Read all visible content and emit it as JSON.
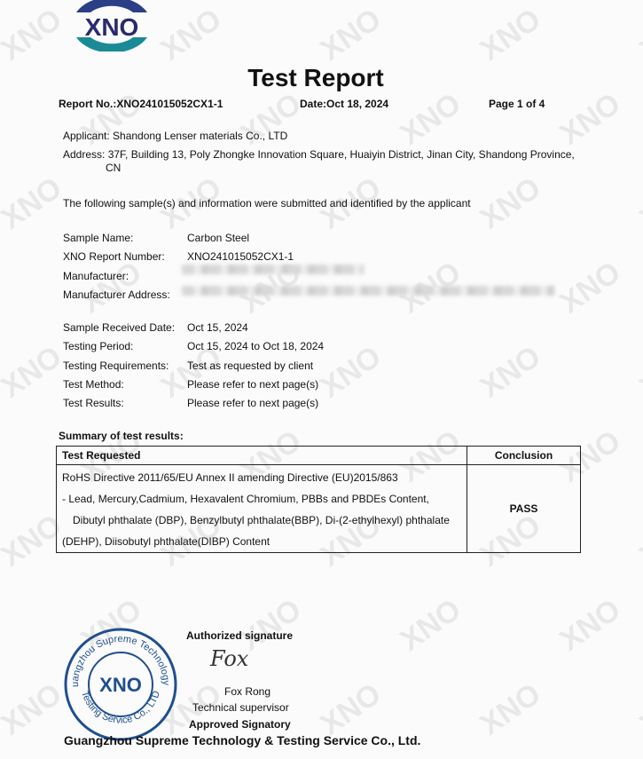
{
  "logo": {
    "text": "XNO",
    "colors": {
      "arc": "#1a7f8f",
      "letters": "#2a2a6e"
    }
  },
  "watermark": "XNO",
  "title": "Test Report",
  "header": {
    "report_no": "Report No.:XNO241015052CX1-1",
    "date": "Date:Oct 18, 2024",
    "page": "Page 1 of 4"
  },
  "applicant": "Applicant: Shandong Lenser materials Co., LTD",
  "address_line1": "Address: 37F, Building 13, Poly Zhongke Innovation Square, Huaiyin District, Jinan City, Shandong Province,",
  "address_line2": "CN",
  "intro": "The following sample(s) and information were submitted and identified by the applicant",
  "fields": [
    {
      "label": "Sample Name:",
      "value": "Carbon Steel"
    },
    {
      "label": "XNO Report Number:",
      "value": "XNO241015052CX1-1"
    },
    {
      "label": "Manufacturer:",
      "value": ""
    },
    {
      "label": "Manufacturer Address:",
      "value": ""
    },
    {
      "label": "Sample Received Date:",
      "value": "Oct 15, 2024"
    },
    {
      "label": "Testing Period:",
      "value": "Oct 15, 2024 to Oct 18, 2024"
    },
    {
      "label": "Testing Requirements:",
      "value": "Test as requested by client"
    },
    {
      "label": "Test Method:",
      "value": "Please refer to next page(s)"
    },
    {
      "label": "Test Results:",
      "value": "Please refer to next page(s)"
    }
  ],
  "summary": {
    "heading": "Summary of test results:",
    "col_test": "Test Requested",
    "col_conclusion": "Conclusion",
    "lines": [
      "RoHS Directive 2011/65/EU Annex II amending Directive (EU)2015/863",
      "- Lead, Mercury,Cadmium, Hexavalent Chromium, PBBs and PBDEs Content,",
      "Dibutyl phthalate (DBP), Benzylbutyl phthalate(BBP), Di-(2-ethylhexyl) phthalate",
      "(DEHP), Diisobutyl phthalate(DIBP) Content"
    ],
    "conclusion": "PASS"
  },
  "signature": {
    "heading": "Authorized signature",
    "handwriting": "Fox",
    "name": "Fox Rong",
    "title": "Technical supervisor",
    "role": "Approved Signatory"
  },
  "stamp": {
    "top_text": "Guangzhou Supreme Technology &",
    "bottom_text": "Testing Service Co., LTD",
    "center": "XNO",
    "color": "#1f4f8f"
  },
  "footer": "Guangzhou Supreme Technology & Testing Service Co., Ltd."
}
